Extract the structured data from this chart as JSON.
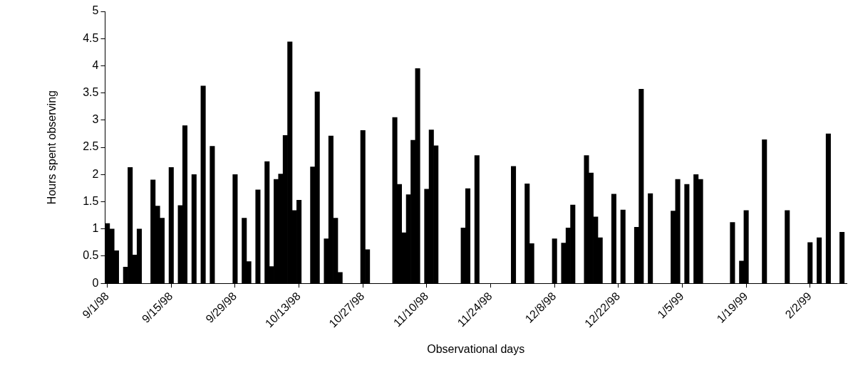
{
  "chart_data": {
    "type": "bar",
    "xlabel": "Observational days",
    "ylabel": "Hours spent observing",
    "color": "#000000",
    "x": [
      "1998-09-01",
      "1998-09-02",
      "1998-09-03",
      "1998-09-05",
      "1998-09-06",
      "1998-09-07",
      "1998-09-08",
      "1998-09-11",
      "1998-09-12",
      "1998-09-13",
      "1998-09-15",
      "1998-09-17",
      "1998-09-18",
      "1998-09-20",
      "1998-09-22",
      "1998-09-24",
      "1998-09-29",
      "1998-10-01",
      "1998-10-02",
      "1998-10-04",
      "1998-10-06",
      "1998-10-07",
      "1998-10-08",
      "1998-10-09",
      "1998-10-10",
      "1998-10-11",
      "1998-10-12",
      "1998-10-13",
      "1998-10-16",
      "1998-10-17",
      "1998-10-19",
      "1998-10-20",
      "1998-10-21",
      "1998-10-22",
      "1998-10-27",
      "1998-10-28",
      "1998-11-03",
      "1998-11-04",
      "1998-11-05",
      "1998-11-06",
      "1998-11-07",
      "1998-11-08",
      "1998-11-10",
      "1998-11-11",
      "1998-11-12",
      "1998-11-18",
      "1998-11-19",
      "1998-11-21",
      "1998-11-29",
      "1998-12-02",
      "1998-12-03",
      "1998-12-08",
      "1998-12-10",
      "1998-12-11",
      "1998-12-12",
      "1998-12-15",
      "1998-12-16",
      "1998-12-17",
      "1998-12-18",
      "1998-12-21",
      "1998-12-23",
      "1998-12-26",
      "1998-12-27",
      "1998-12-29",
      "1999-01-03",
      "1999-01-04",
      "1999-01-06",
      "1999-01-08",
      "1999-01-09",
      "1999-01-16",
      "1999-01-18",
      "1999-01-19",
      "1999-01-23",
      "1999-01-28",
      "1999-02-02",
      "1999-02-04",
      "1999-02-06",
      "1999-02-09"
    ],
    "values": [
      1.1,
      1.0,
      0.6,
      0.3,
      2.13,
      0.52,
      1.0,
      1.9,
      1.42,
      1.2,
      2.13,
      1.43,
      2.9,
      2.0,
      3.63,
      2.52,
      2.0,
      1.2,
      0.4,
      1.72,
      2.24,
      0.31,
      1.91,
      2.01,
      2.72,
      4.44,
      1.34,
      1.53,
      2.14,
      3.52,
      0.82,
      2.71,
      1.2,
      0.2,
      2.81,
      0.62,
      3.05,
      1.82,
      0.93,
      1.63,
      2.63,
      3.95,
      1.73,
      2.82,
      2.53,
      1.02,
      1.74,
      2.35,
      2.15,
      1.83,
      0.73,
      0.82,
      0.74,
      1.02,
      1.44,
      2.35,
      2.03,
      1.22,
      0.84,
      1.64,
      1.35,
      1.03,
      3.57,
      1.65,
      1.33,
      1.91,
      1.82,
      2.0,
      1.91,
      1.12,
      0.41,
      1.34,
      2.64,
      1.34,
      0.75,
      0.84,
      2.75,
      0.94
    ],
    "xlim": [
      "1998-08-31T12:00",
      "1999-02-10"
    ],
    "xticks": [
      {
        "value": "1998-09-01",
        "label": "9/1/98"
      },
      {
        "value": "1998-09-15",
        "label": "9/15/98"
      },
      {
        "value": "1998-09-29",
        "label": "9/29/98"
      },
      {
        "value": "1998-10-13",
        "label": "10/13/98"
      },
      {
        "value": "1998-10-27",
        "label": "10/27/98"
      },
      {
        "value": "1998-11-10",
        "label": "11/10/98"
      },
      {
        "value": "1998-11-24",
        "label": "11/24/98"
      },
      {
        "value": "1998-12-08",
        "label": "12/8/98"
      },
      {
        "value": "1998-12-22",
        "label": "12/22/98"
      },
      {
        "value": "1999-01-05",
        "label": "1/5/99"
      },
      {
        "value": "1999-01-19",
        "label": "1/19/99"
      },
      {
        "value": "1999-02-02",
        "label": "2/2/99"
      }
    ],
    "ylim": [
      0,
      5
    ],
    "yticks": [
      0,
      0.5,
      1,
      1.5,
      2,
      2.5,
      3,
      3.5,
      4,
      4.5,
      5
    ]
  }
}
